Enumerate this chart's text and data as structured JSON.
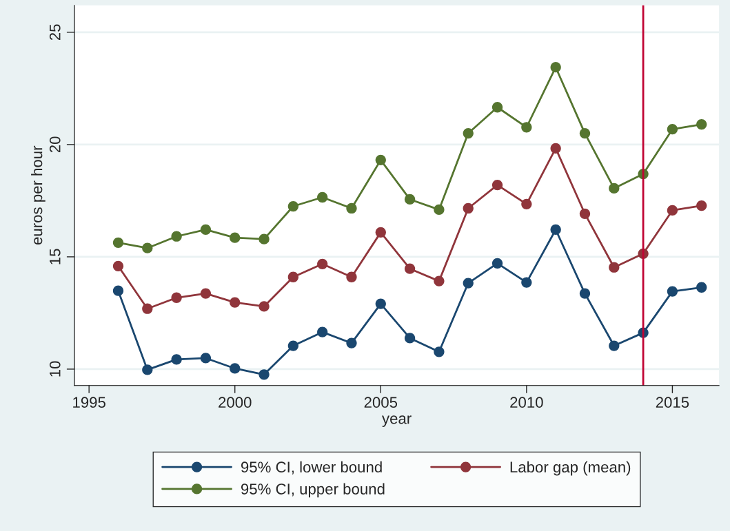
{
  "chart_data": {
    "type": "line",
    "xlabel": "year",
    "ylabel": "euros per hour",
    "x": [
      1996,
      1997,
      1998,
      1999,
      2000,
      2001,
      2002,
      2003,
      2004,
      2005,
      2006,
      2007,
      2008,
      2009,
      2010,
      2011,
      2012,
      2013,
      2014,
      2015,
      2016
    ],
    "series": [
      {
        "name": "95% CI, lower bound",
        "color": "#1a476f",
        "values": [
          13.49,
          9.97,
          10.43,
          10.49,
          10.03,
          9.76,
          11.04,
          11.65,
          11.16,
          12.91,
          11.38,
          10.77,
          13.83,
          14.71,
          13.86,
          16.21,
          13.37,
          11.04,
          11.62,
          13.46,
          13.64
        ]
      },
      {
        "name": "Labor gap (mean)",
        "color": "#90353b",
        "values": [
          14.59,
          12.69,
          13.18,
          13.37,
          12.97,
          12.79,
          14.1,
          14.68,
          14.1,
          16.09,
          14.47,
          13.92,
          17.16,
          18.2,
          17.35,
          19.83,
          16.92,
          14.53,
          15.14,
          17.07,
          17.28
        ]
      },
      {
        "name": "95% CI, upper bound",
        "color": "#55752f",
        "values": [
          15.63,
          15.39,
          15.91,
          16.21,
          15.85,
          15.79,
          17.25,
          17.65,
          17.16,
          19.31,
          17.56,
          17.1,
          20.5,
          21.66,
          20.77,
          23.44,
          20.5,
          18.05,
          18.69,
          20.68,
          20.9
        ]
      }
    ],
    "xlim": [
      1994.5,
      2016.6
    ],
    "xticks": [
      1995,
      2000,
      2005,
      2010,
      2015
    ],
    "ylim": [
      9.27,
      26.2
    ],
    "yticks": [
      10,
      15,
      20,
      25
    ],
    "ref_lines": [
      {
        "axis": "x",
        "value": 2014,
        "color": "#c10534"
      }
    ],
    "grid": "y",
    "legend": "bottom",
    "marker": "circle",
    "line_style": "solid"
  }
}
